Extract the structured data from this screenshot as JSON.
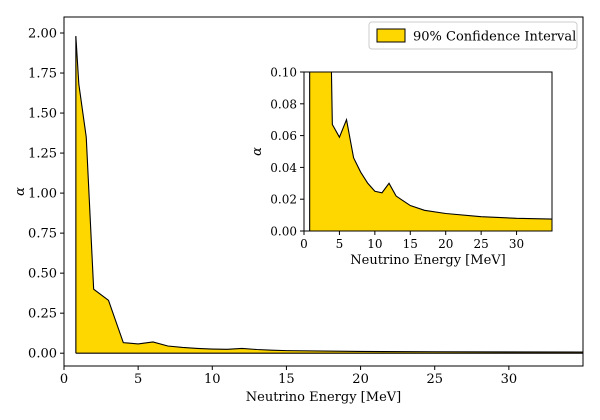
{
  "chart_data": [
    {
      "type": "area",
      "role": "main",
      "series": [
        {
          "name": "90% Confidence Interval",
          "color": "#FFD700",
          "x": [
            0.8,
            1.0,
            1.5,
            1.8,
            2.0,
            3.0,
            4.0,
            5.0,
            6.0,
            7.0,
            8.0,
            9.0,
            10.0,
            11.0,
            12.0,
            13.0,
            14.0,
            15.0,
            20.0,
            25.0,
            30.0,
            35.0
          ],
          "upper": [
            1.98,
            1.68,
            1.35,
            0.78,
            0.4,
            0.33,
            0.066,
            0.058,
            0.07,
            0.045,
            0.036,
            0.03,
            0.026,
            0.024,
            0.03,
            0.023,
            0.019,
            0.016,
            0.011,
            0.009,
            0.008,
            0.007
          ],
          "lower": [
            0,
            0,
            0,
            0,
            0,
            0,
            0,
            0,
            0,
            0,
            0,
            0,
            0,
            0,
            0,
            0,
            0,
            0,
            0,
            0,
            0,
            0
          ]
        }
      ],
      "xlabel": "Neutrino Energy [MeV]",
      "ylabel": "α",
      "xlim": [
        0,
        35
      ],
      "ylim": [
        -0.08,
        2.1
      ],
      "xticks": [
        0,
        5,
        10,
        15,
        20,
        25,
        30
      ],
      "yticks": [
        0.0,
        0.25,
        0.5,
        0.75,
        1.0,
        1.25,
        1.5,
        1.75,
        2.0
      ],
      "xtick_labels": [
        "0",
        "5",
        "10",
        "15",
        "20",
        "25",
        "30"
      ],
      "ytick_labels": [
        "0.00",
        "0.25",
        "0.50",
        "0.75",
        "1.00",
        "1.25",
        "1.50",
        "1.75",
        "2.00"
      ],
      "legend": {
        "position": "top-right",
        "entries": [
          "90% Confidence Interval"
        ]
      },
      "grid": false
    },
    {
      "type": "area",
      "role": "inset",
      "series": [
        {
          "name": "90% Confidence Interval",
          "color": "#FFD700",
          "x": [
            0.8,
            1.0,
            2.0,
            3.0,
            4.0,
            5.0,
            6.0,
            7.0,
            8.0,
            9.0,
            10.0,
            11.0,
            12.0,
            13.0,
            14.0,
            15.0,
            17.0,
            20.0,
            25.0,
            30.0,
            35.0
          ],
          "upper": [
            1.98,
            1.68,
            0.4,
            0.33,
            0.067,
            0.059,
            0.07,
            0.046,
            0.037,
            0.03,
            0.025,
            0.024,
            0.03,
            0.022,
            0.019,
            0.016,
            0.013,
            0.011,
            0.009,
            0.008,
            0.0075
          ],
          "lower": [
            0,
            0,
            0,
            0,
            0,
            0,
            0,
            0,
            0,
            0,
            0,
            0,
            0,
            0,
            0,
            0,
            0,
            0,
            0,
            0,
            0
          ]
        }
      ],
      "xlabel": "Neutrino Energy [MeV]",
      "ylabel": "α",
      "xlim": [
        0,
        35
      ],
      "ylim": [
        0,
        0.1
      ],
      "xticks": [
        0,
        5,
        10,
        15,
        20,
        25,
        30
      ],
      "yticks": [
        0.0,
        0.02,
        0.04,
        0.06,
        0.08,
        0.1
      ],
      "xtick_labels": [
        "0",
        "5",
        "10",
        "15",
        "20",
        "25",
        "30"
      ],
      "ytick_labels": [
        "0.00",
        "0.02",
        "0.04",
        "0.06",
        "0.08",
        "0.10"
      ],
      "grid": false
    }
  ]
}
